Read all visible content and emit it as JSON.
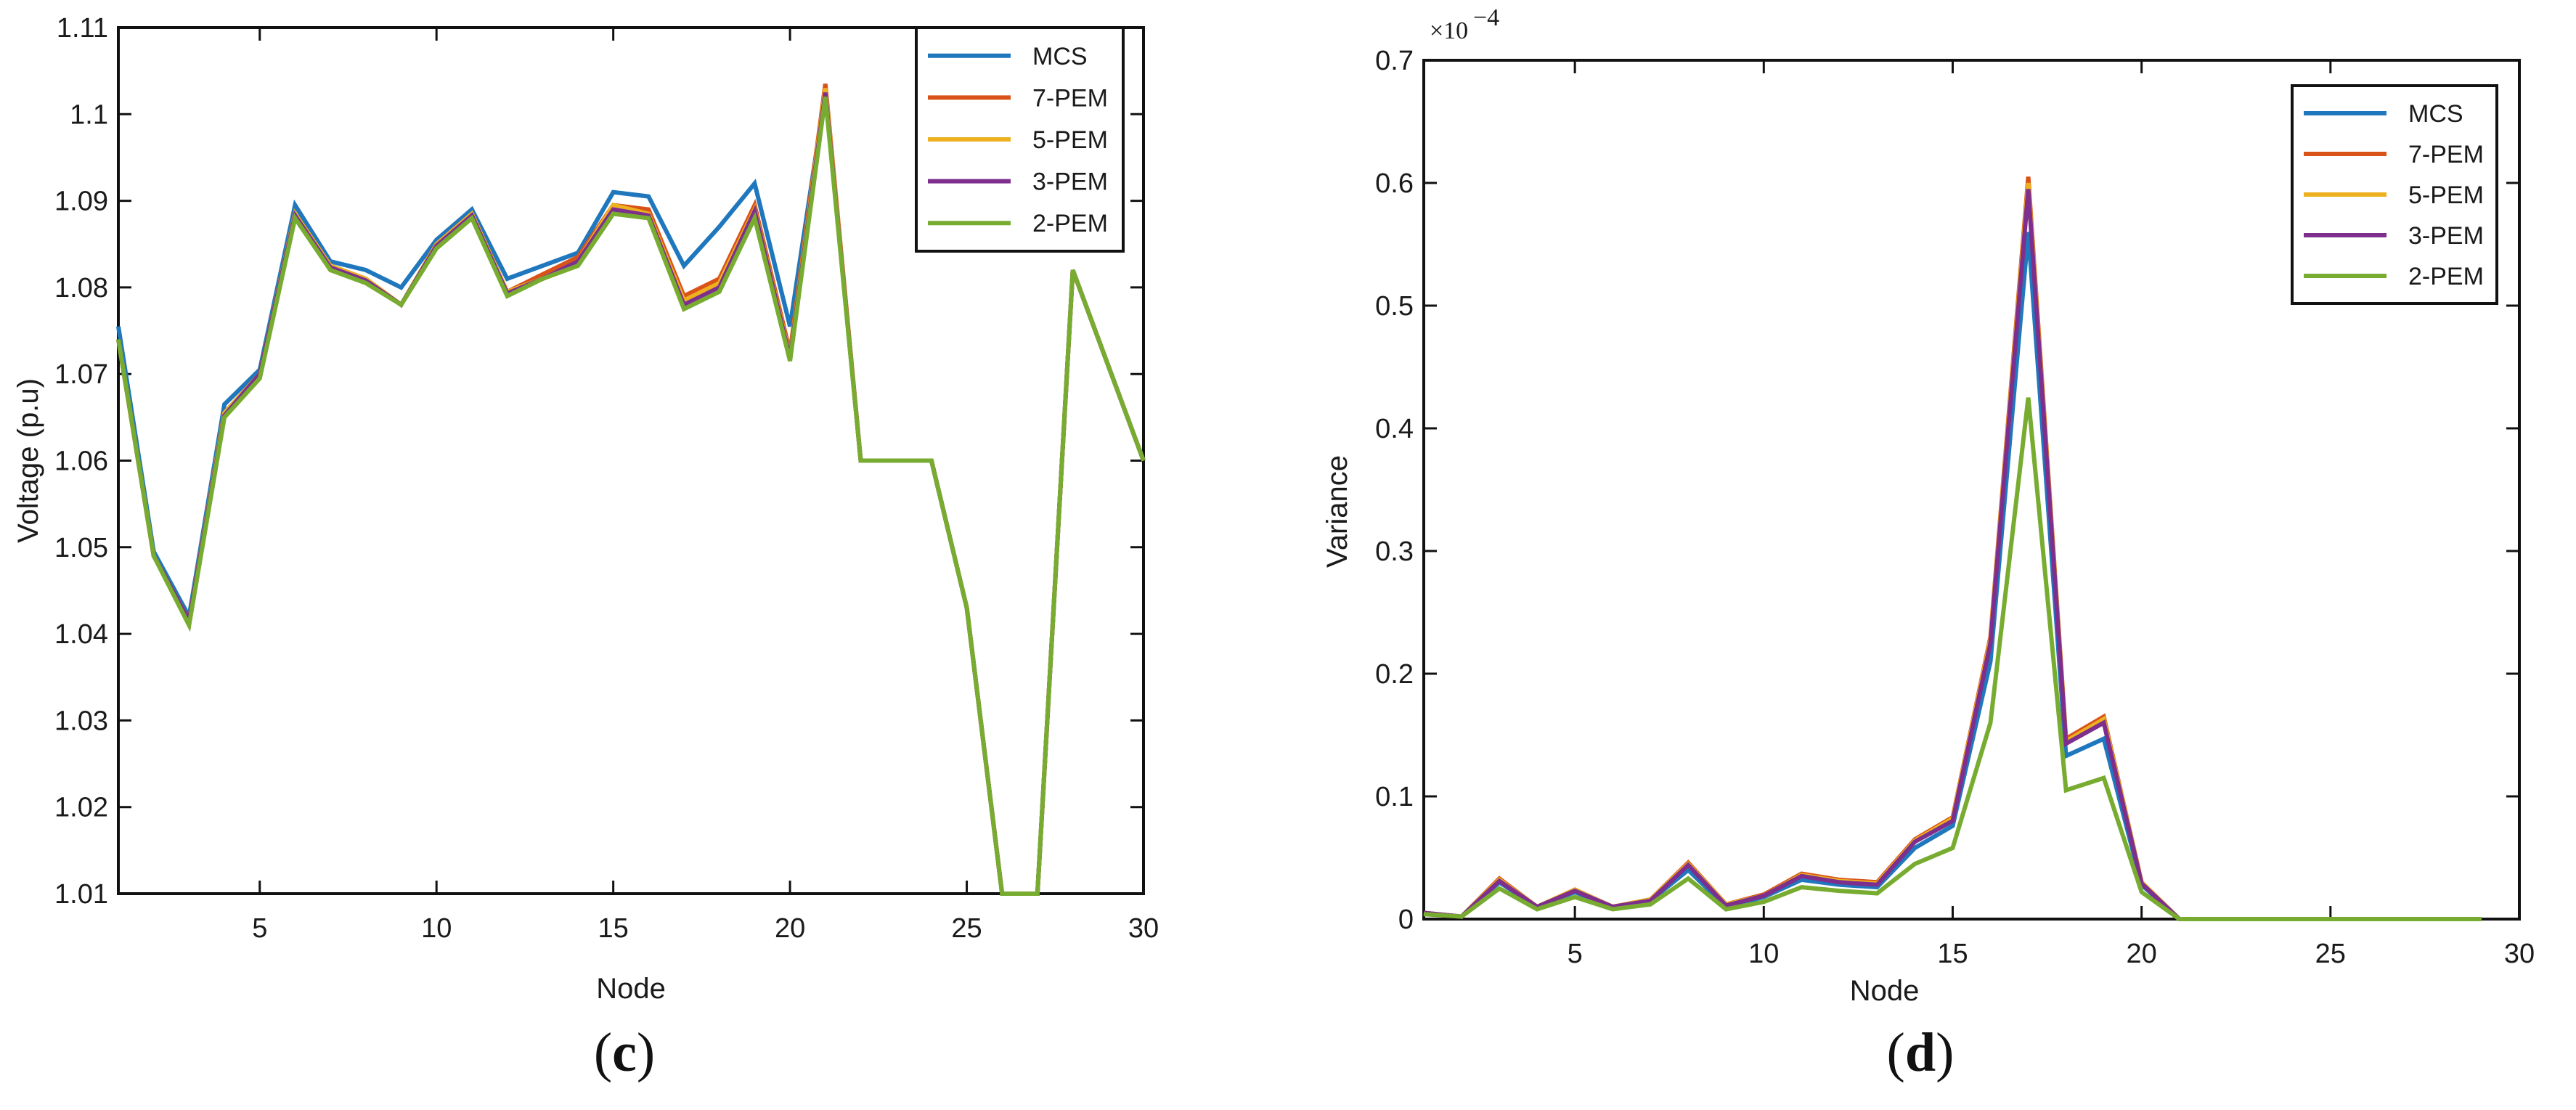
{
  "colors": {
    "MCS": "#1f77bd",
    "7-PEM": "#d95319",
    "5-PEM": "#edb120",
    "3-PEM": "#7e2f8e",
    "2-PEM": "#77ac30"
  },
  "chart_data": [
    {
      "type": "line",
      "caption": "(c)",
      "xlabel": "Node",
      "ylabel": "Voltage (p.u)",
      "xlim": [
        1,
        30
      ],
      "ylim": [
        1.01,
        1.11
      ],
      "xticks": [
        "5",
        "10",
        "15",
        "20",
        "25",
        "30"
      ],
      "yticks": [
        "1.01",
        "1.02",
        "1.03",
        "1.04",
        "1.05",
        "1.06",
        "1.07",
        "1.08",
        "1.09",
        "1.1",
        "1.11"
      ],
      "legend": "top-right",
      "x": [
        1,
        2,
        3,
        4,
        5,
        6,
        7,
        8,
        9,
        10,
        11,
        12,
        13,
        14,
        15,
        16,
        17,
        18,
        19,
        20,
        21,
        22,
        23,
        24,
        25,
        26,
        27,
        28,
        29,
        30
      ],
      "series": [
        {
          "name": "MCS",
          "values": [
            1.0755,
            1.0495,
            1.042,
            1.0665,
            1.0705,
            1.0895,
            1.083,
            1.082,
            1.08,
            1.0855,
            1.089,
            1.081,
            1.0825,
            1.084,
            1.091,
            1.0905,
            1.0825,
            1.087,
            1.092,
            1.0755,
            1.1025,
            1.06,
            1.06,
            1.06,
            1.043,
            1.01,
            1.01,
            1.082,
            1.071,
            1.06
          ]
        },
        {
          "name": "7-PEM",
          "values": [
            1.074,
            1.049,
            1.0415,
            1.0655,
            1.07,
            1.0885,
            1.0825,
            1.081,
            1.078,
            1.085,
            1.0885,
            1.0795,
            1.0815,
            1.0835,
            1.0895,
            1.089,
            1.079,
            1.081,
            1.0895,
            1.0725,
            1.1035,
            1.06,
            1.06,
            1.06,
            1.043,
            1.01,
            1.01,
            1.082,
            1.071,
            1.06
          ]
        },
        {
          "name": "5-PEM",
          "values": [
            1.074,
            1.049,
            1.0415,
            1.0655,
            1.07,
            1.0885,
            1.0825,
            1.081,
            1.078,
            1.085,
            1.0885,
            1.0795,
            1.081,
            1.083,
            1.0895,
            1.0885,
            1.0785,
            1.0805,
            1.089,
            1.072,
            1.103,
            1.06,
            1.06,
            1.06,
            1.043,
            1.01,
            1.01,
            1.082,
            1.071,
            1.06
          ]
        },
        {
          "name": "3-PEM",
          "values": [
            1.074,
            1.049,
            1.0415,
            1.0652,
            1.07,
            1.0883,
            1.0823,
            1.0808,
            1.078,
            1.0848,
            1.0883,
            1.0793,
            1.081,
            1.083,
            1.089,
            1.0883,
            1.078,
            1.08,
            1.0888,
            1.0718,
            1.1025,
            1.06,
            1.06,
            1.06,
            1.043,
            1.01,
            1.01,
            1.082,
            1.071,
            1.06
          ]
        },
        {
          "name": "2-PEM",
          "values": [
            1.074,
            1.049,
            1.041,
            1.065,
            1.0695,
            1.088,
            1.082,
            1.0805,
            1.078,
            1.0845,
            1.088,
            1.079,
            1.081,
            1.0825,
            1.0885,
            1.088,
            1.0775,
            1.0795,
            1.088,
            1.0715,
            1.102,
            1.06,
            1.06,
            1.06,
            1.043,
            1.01,
            1.01,
            1.082,
            1.071,
            1.06
          ]
        }
      ]
    },
    {
      "type": "line",
      "caption": "(d)",
      "xlabel": "Node",
      "ylabel": "Variance",
      "scale_label": "×10",
      "scale_exponent": "−4",
      "xlim": [
        1,
        30
      ],
      "ylim": [
        0,
        0.7
      ],
      "xticks": [
        "5",
        "10",
        "15",
        "20",
        "25",
        "30"
      ],
      "yticks": [
        "0",
        "0.1",
        "0.2",
        "0.3",
        "0.4",
        "0.5",
        "0.6",
        "0.7"
      ],
      "legend": "top-right",
      "x": [
        1,
        2,
        3,
        4,
        5,
        6,
        7,
        8,
        9,
        10,
        11,
        12,
        13,
        14,
        15,
        16,
        17,
        18,
        19,
        20,
        21,
        22,
        23,
        24,
        25,
        26,
        27,
        28,
        29
      ],
      "series": [
        {
          "name": "MCS",
          "values": [
            0.005,
            0.002,
            0.03,
            0.01,
            0.022,
            0.01,
            0.015,
            0.04,
            0.01,
            0.018,
            0.032,
            0.028,
            0.026,
            0.058,
            0.076,
            0.21,
            0.56,
            0.133,
            0.147,
            0.028,
            0,
            0,
            0,
            0,
            0,
            0,
            0,
            0,
            0
          ]
        },
        {
          "name": "7-PEM",
          "values": [
            0.005,
            0.002,
            0.033,
            0.01,
            0.024,
            0.01,
            0.016,
            0.046,
            0.012,
            0.02,
            0.037,
            0.032,
            0.03,
            0.065,
            0.083,
            0.23,
            0.605,
            0.147,
            0.165,
            0.03,
            0,
            0,
            0,
            0,
            0,
            0,
            0,
            0,
            0
          ]
        },
        {
          "name": "5-PEM",
          "values": [
            0.005,
            0.002,
            0.032,
            0.01,
            0.024,
            0.01,
            0.016,
            0.045,
            0.012,
            0.019,
            0.036,
            0.031,
            0.029,
            0.064,
            0.082,
            0.228,
            0.6,
            0.145,
            0.163,
            0.03,
            0,
            0,
            0,
            0,
            0,
            0,
            0,
            0,
            0
          ]
        },
        {
          "name": "3-PEM",
          "values": [
            0.005,
            0.002,
            0.031,
            0.01,
            0.023,
            0.01,
            0.015,
            0.044,
            0.011,
            0.019,
            0.035,
            0.03,
            0.028,
            0.063,
            0.08,
            0.225,
            0.595,
            0.143,
            0.16,
            0.029,
            0,
            0,
            0,
            0,
            0,
            0,
            0,
            0,
            0
          ]
        },
        {
          "name": "2-PEM",
          "values": [
            0.004,
            0.002,
            0.025,
            0.008,
            0.018,
            0.008,
            0.012,
            0.033,
            0.008,
            0.014,
            0.026,
            0.023,
            0.021,
            0.045,
            0.058,
            0.16,
            0.425,
            0.105,
            0.115,
            0.022,
            0,
            0,
            0,
            0,
            0,
            0,
            0,
            0,
            0
          ]
        }
      ]
    }
  ]
}
